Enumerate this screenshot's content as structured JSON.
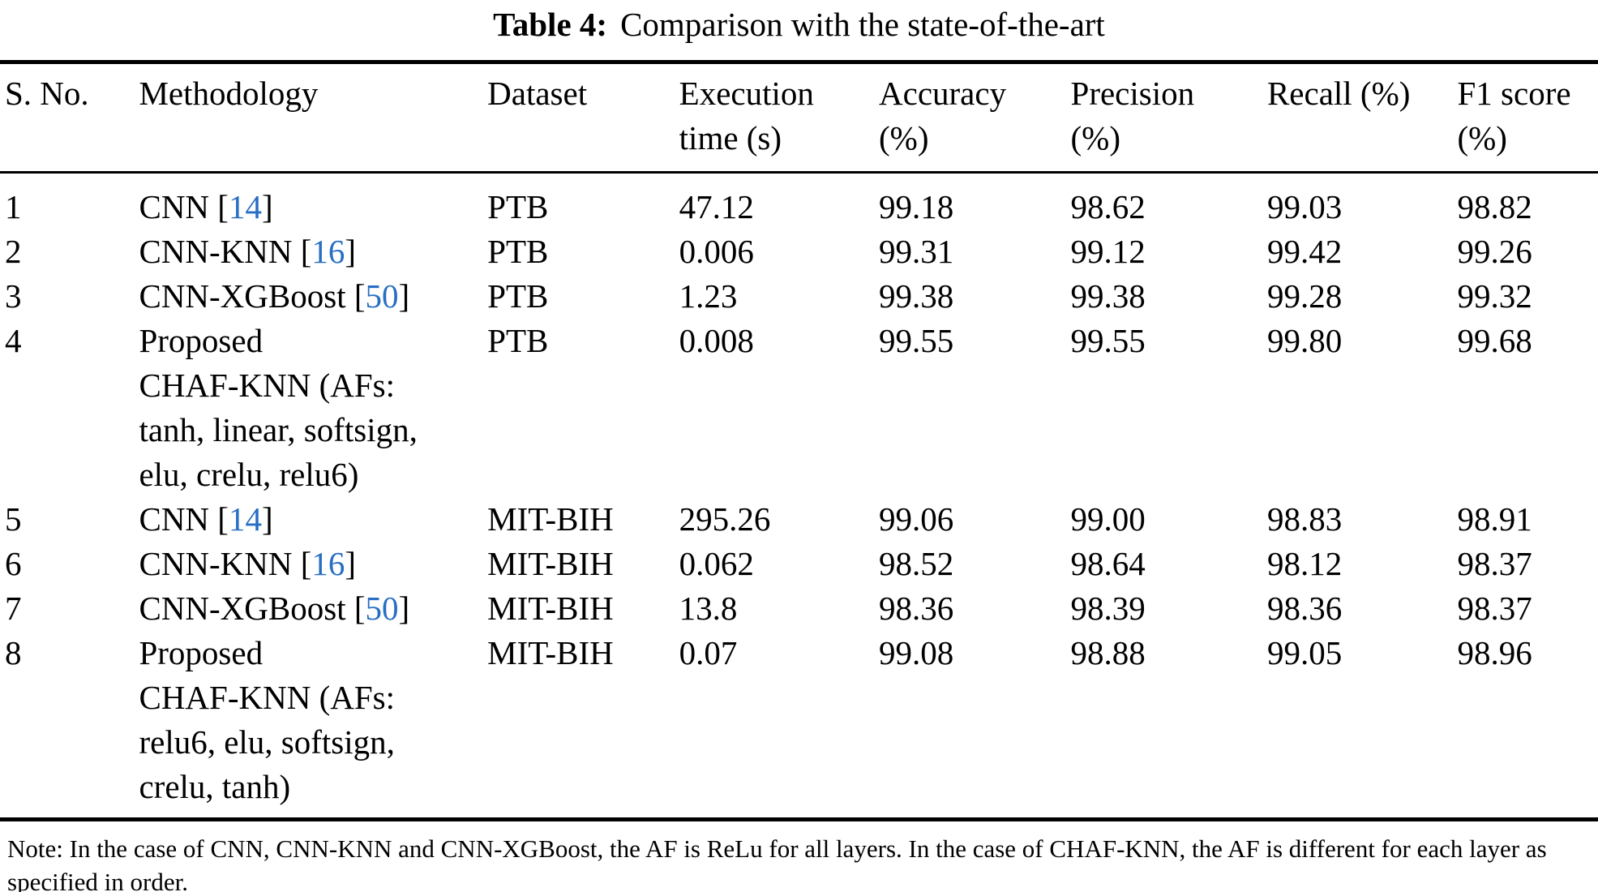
{
  "page": {
    "background": "#ffffff",
    "text_color": "#000000",
    "citation_color": "#286ec3"
  },
  "caption": {
    "label": "Table 4:",
    "text": "Comparison with the state-of-the-art"
  },
  "table": {
    "header": [
      {
        "line1": "S. No.",
        "line2": ""
      },
      {
        "line1": "Methodology",
        "line2": ""
      },
      {
        "line1": "Dataset",
        "line2": ""
      },
      {
        "line1": "Execution",
        "line2": "time (s)"
      },
      {
        "line1": "Accuracy",
        "line2": "(%)"
      },
      {
        "line1": "Precision",
        "line2": "(%)"
      },
      {
        "line1": "Recall (%)",
        "line2": ""
      },
      {
        "line1": "F1 score",
        "line2": "(%)"
      }
    ],
    "rows": [
      {
        "sno": "1",
        "methodology": [
          [
            {
              "text": "CNN ["
            },
            {
              "text": "14",
              "cite": true
            },
            {
              "text": "]"
            }
          ]
        ],
        "dataset": "PTB",
        "execution_time_s": "47.12",
        "accuracy_pct": "99.18",
        "precision_pct": "98.62",
        "recall_pct": "99.03",
        "f1_pct": "98.82"
      },
      {
        "sno": "2",
        "methodology": [
          [
            {
              "text": "CNN-KNN ["
            },
            {
              "text": "16",
              "cite": true
            },
            {
              "text": "]"
            }
          ]
        ],
        "dataset": "PTB",
        "execution_time_s": "0.006",
        "accuracy_pct": "99.31",
        "precision_pct": "99.12",
        "recall_pct": "99.42",
        "f1_pct": "99.26"
      },
      {
        "sno": "3",
        "methodology": [
          [
            {
              "text": "CNN-XGBoost ["
            },
            {
              "text": "50",
              "cite": true
            },
            {
              "text": "]"
            }
          ]
        ],
        "dataset": "PTB",
        "execution_time_s": "1.23",
        "accuracy_pct": "99.38",
        "precision_pct": "99.38",
        "recall_pct": "99.28",
        "f1_pct": "99.32"
      },
      {
        "sno": "4",
        "methodology": [
          [
            {
              "text": "Proposed"
            }
          ],
          [
            {
              "text": "CHAF-KNN (AFs:"
            }
          ],
          [
            {
              "text": "tanh, linear, softsign,"
            }
          ],
          [
            {
              "text": "elu, crelu, relu6)"
            }
          ]
        ],
        "dataset": "PTB",
        "execution_time_s": "0.008",
        "accuracy_pct": "99.55",
        "precision_pct": "99.55",
        "recall_pct": "99.80",
        "f1_pct": "99.68"
      },
      {
        "sno": "5",
        "methodology": [
          [
            {
              "text": "CNN ["
            },
            {
              "text": "14",
              "cite": true
            },
            {
              "text": "]"
            }
          ]
        ],
        "dataset": "MIT-BIH",
        "execution_time_s": "295.26",
        "accuracy_pct": "99.06",
        "precision_pct": "99.00",
        "recall_pct": "98.83",
        "f1_pct": "98.91"
      },
      {
        "sno": "6",
        "methodology": [
          [
            {
              "text": "CNN-KNN ["
            },
            {
              "text": "16",
              "cite": true
            },
            {
              "text": "]"
            }
          ]
        ],
        "dataset": "MIT-BIH",
        "execution_time_s": "0.062",
        "accuracy_pct": "98.52",
        "precision_pct": "98.64",
        "recall_pct": "98.12",
        "f1_pct": "98.37"
      },
      {
        "sno": "7",
        "methodology": [
          [
            {
              "text": "CNN-XGBoost ["
            },
            {
              "text": "50",
              "cite": true
            },
            {
              "text": "]"
            }
          ]
        ],
        "dataset": "MIT-BIH",
        "execution_time_s": "13.8",
        "accuracy_pct": "98.36",
        "precision_pct": "98.39",
        "recall_pct": "98.36",
        "f1_pct": "98.37"
      },
      {
        "sno": "8",
        "methodology": [
          [
            {
              "text": "Proposed"
            }
          ],
          [
            {
              "text": "CHAF-KNN (AFs:"
            }
          ],
          [
            {
              "text": "relu6, elu, softsign,"
            }
          ],
          [
            {
              "text": "crelu, tanh)"
            }
          ]
        ],
        "dataset": "MIT-BIH",
        "execution_time_s": "0.07",
        "accuracy_pct": "99.08",
        "precision_pct": "98.88",
        "recall_pct": "99.05",
        "f1_pct": "98.96"
      }
    ]
  },
  "note": "Note: In the case of CNN, CNN-KNN and CNN-XGBoost, the AF is ReLu for all layers. In the case of CHAF-KNN, the AF is different for each layer as specified in order."
}
